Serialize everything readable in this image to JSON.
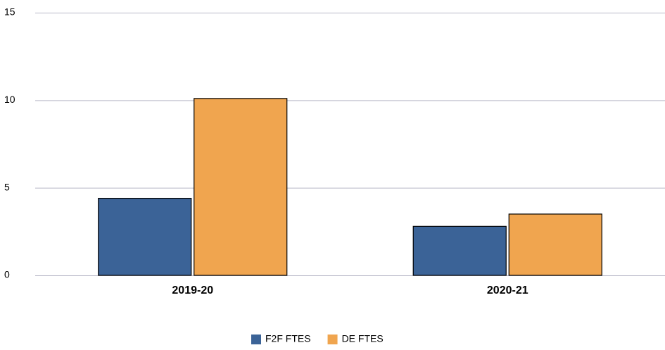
{
  "chart_data": {
    "type": "bar",
    "categories": [
      "2019-20",
      "2020-21"
    ],
    "series": [
      {
        "name": "F2F FTES",
        "color": "#3b6397",
        "values": [
          4.4,
          2.8
        ]
      },
      {
        "name": "DE FTES",
        "color": "#f0a54f",
        "values": [
          10.1,
          3.5
        ]
      }
    ],
    "ylim": [
      0,
      15
    ],
    "yticks": [
      0,
      5,
      10,
      15
    ],
    "grid": true,
    "legend": "bottom"
  }
}
